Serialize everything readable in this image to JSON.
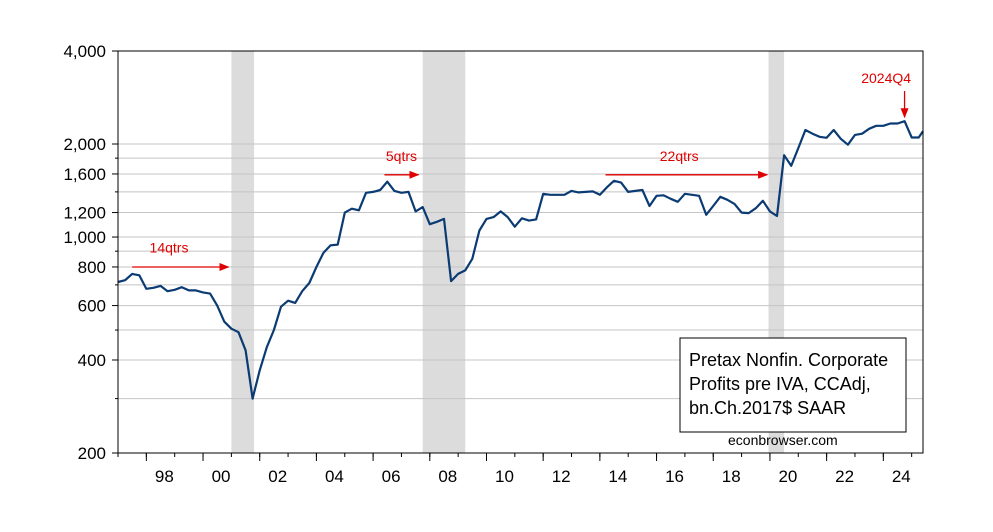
{
  "chart_data": {
    "type": "line",
    "scale": "log",
    "ylim": [
      200,
      4000
    ],
    "y_ticks": [
      {
        "value": 200,
        "label": "200"
      },
      {
        "value": 400,
        "label": "400"
      },
      {
        "value": 600,
        "label": "600"
      },
      {
        "value": 800,
        "label": "800"
      },
      {
        "value": 1000,
        "label": "1,000"
      },
      {
        "value": 1200,
        "label": "1,200"
      },
      {
        "value": 1600,
        "label": "1,600"
      },
      {
        "value": 2000,
        "label": "2,000"
      },
      {
        "value": 4000,
        "label": "4,000"
      }
    ],
    "y_gridlines": [
      300,
      400,
      500,
      600,
      700,
      800,
      900,
      1000,
      1200,
      1400,
      1600,
      1800,
      2000
    ],
    "x_range": [
      1997.0,
      2025.4
    ],
    "x_ticks": [
      {
        "value": 1998,
        "label": "98"
      },
      {
        "value": 2000,
        "label": "00"
      },
      {
        "value": 2002,
        "label": "02"
      },
      {
        "value": 2004,
        "label": "04"
      },
      {
        "value": 2006,
        "label": "06"
      },
      {
        "value": 2008,
        "label": "08"
      },
      {
        "value": 2010,
        "label": "10"
      },
      {
        "value": 2012,
        "label": "12"
      },
      {
        "value": 2014,
        "label": "14"
      },
      {
        "value": 2016,
        "label": "16"
      },
      {
        "value": 2018,
        "label": "18"
      },
      {
        "value": 2020,
        "label": "20"
      },
      {
        "value": 2022,
        "label": "22"
      },
      {
        "value": 2024,
        "label": "24"
      }
    ],
    "recessions": [
      [
        2001.0,
        2001.8
      ],
      [
        2007.75,
        2009.25
      ],
      [
        2019.95,
        2020.5
      ]
    ],
    "series": [
      {
        "name": "Pretax Nonfin. Corporate Profits pre IVA, CCAdj, bn.Ch.2017$ SAAR",
        "color": "#0b3b73",
        "points": [
          [
            1997.0,
            715
          ],
          [
            1997.25,
            725
          ],
          [
            1997.5,
            760
          ],
          [
            1997.75,
            752
          ],
          [
            1998.0,
            680
          ],
          [
            1998.25,
            685
          ],
          [
            1998.5,
            695
          ],
          [
            1998.75,
            668
          ],
          [
            1999.0,
            675
          ],
          [
            1999.25,
            688
          ],
          [
            1999.5,
            672
          ],
          [
            1999.75,
            672
          ],
          [
            2000.0,
            662
          ],
          [
            2000.25,
            656
          ],
          [
            2000.5,
            600
          ],
          [
            2000.75,
            532
          ],
          [
            2001.0,
            505
          ],
          [
            2001.25,
            492
          ],
          [
            2001.5,
            430
          ],
          [
            2001.75,
            300
          ],
          [
            2002.0,
            370
          ],
          [
            2002.25,
            440
          ],
          [
            2002.5,
            500
          ],
          [
            2002.75,
            595
          ],
          [
            2003.0,
            622
          ],
          [
            2003.25,
            612
          ],
          [
            2003.5,
            668
          ],
          [
            2003.75,
            710
          ],
          [
            2004.0,
            800
          ],
          [
            2004.25,
            890
          ],
          [
            2004.5,
            940
          ],
          [
            2004.75,
            945
          ],
          [
            2005.0,
            1200
          ],
          [
            2005.25,
            1235
          ],
          [
            2005.5,
            1220
          ],
          [
            2005.75,
            1390
          ],
          [
            2006.0,
            1400
          ],
          [
            2006.25,
            1420
          ],
          [
            2006.5,
            1510
          ],
          [
            2006.75,
            1410
          ],
          [
            2007.0,
            1390
          ],
          [
            2007.25,
            1400
          ],
          [
            2007.5,
            1210
          ],
          [
            2007.75,
            1250
          ],
          [
            2008.0,
            1100
          ],
          [
            2008.25,
            1120
          ],
          [
            2008.5,
            1145
          ],
          [
            2008.75,
            720
          ],
          [
            2009.0,
            760
          ],
          [
            2009.25,
            780
          ],
          [
            2009.5,
            850
          ],
          [
            2009.75,
            1050
          ],
          [
            2010.0,
            1145
          ],
          [
            2010.25,
            1160
          ],
          [
            2010.5,
            1210
          ],
          [
            2010.75,
            1160
          ],
          [
            2011.0,
            1080
          ],
          [
            2011.25,
            1150
          ],
          [
            2011.5,
            1130
          ],
          [
            2011.75,
            1140
          ],
          [
            2012.0,
            1380
          ],
          [
            2012.25,
            1370
          ],
          [
            2012.5,
            1370
          ],
          [
            2012.75,
            1370
          ],
          [
            2013.0,
            1410
          ],
          [
            2013.25,
            1395
          ],
          [
            2013.5,
            1400
          ],
          [
            2013.75,
            1405
          ],
          [
            2014.0,
            1370
          ],
          [
            2014.25,
            1450
          ],
          [
            2014.5,
            1520
          ],
          [
            2014.75,
            1500
          ],
          [
            2015.0,
            1400
          ],
          [
            2015.25,
            1410
          ],
          [
            2015.5,
            1420
          ],
          [
            2015.75,
            1260
          ],
          [
            2016.0,
            1360
          ],
          [
            2016.25,
            1365
          ],
          [
            2016.5,
            1330
          ],
          [
            2016.75,
            1300
          ],
          [
            2017.0,
            1380
          ],
          [
            2017.25,
            1370
          ],
          [
            2017.5,
            1360
          ],
          [
            2017.75,
            1180
          ],
          [
            2018.0,
            1260
          ],
          [
            2018.25,
            1350
          ],
          [
            2018.5,
            1320
          ],
          [
            2018.75,
            1280
          ],
          [
            2019.0,
            1200
          ],
          [
            2019.25,
            1195
          ],
          [
            2019.5,
            1240
          ],
          [
            2019.75,
            1310
          ],
          [
            2020.0,
            1210
          ],
          [
            2020.25,
            1170
          ],
          [
            2020.5,
            1840
          ],
          [
            2020.75,
            1700
          ],
          [
            2021.0,
            1940
          ],
          [
            2021.25,
            2220
          ],
          [
            2021.5,
            2160
          ],
          [
            2021.75,
            2110
          ],
          [
            2022.0,
            2095
          ],
          [
            2022.25,
            2220
          ],
          [
            2022.5,
            2080
          ],
          [
            2022.75,
            1990
          ],
          [
            2023.0,
            2140
          ],
          [
            2023.25,
            2160
          ],
          [
            2023.5,
            2240
          ],
          [
            2023.75,
            2290
          ],
          [
            2024.0,
            2290
          ],
          [
            2024.25,
            2330
          ],
          [
            2024.5,
            2330
          ],
          [
            2024.75,
            2370
          ],
          [
            2025.0,
            2100
          ],
          [
            2025.25,
            2100
          ],
          [
            2025.5,
            2200
          ]
        ]
      }
    ],
    "annotations": [
      {
        "text": "14qtrs",
        "x0": 1997.5,
        "x1": 2000.9,
        "y": 800,
        "text_x": 1998.8,
        "text_y": 890
      },
      {
        "text": "5qtrs",
        "x0": 2006.4,
        "x1": 2007.6,
        "y": 1590,
        "text_x": 2007.0,
        "text_y": 1760
      },
      {
        "text": "22qtrs",
        "x0": 2014.2,
        "x1": 2019.9,
        "y": 1590,
        "text_x": 2016.8,
        "text_y": 1760
      },
      {
        "text": "2024Q4",
        "x0": 2024.75,
        "x1": 2024.75,
        "y": 2370,
        "text_x": 2024.1,
        "text_y": 3150
      }
    ],
    "legend": {
      "lines": [
        "Pretax Nonfin. Corporate",
        "Profits pre IVA, CCAdj,",
        "bn.Ch.2017$ SAAR"
      ],
      "position": "bottom-right"
    },
    "credit": "econbrowser.com",
    "colors": {
      "line": "#0b3b73",
      "recession": "#dcdcdc",
      "grid": "#c4c4c4",
      "annotation": "#e00000"
    }
  }
}
